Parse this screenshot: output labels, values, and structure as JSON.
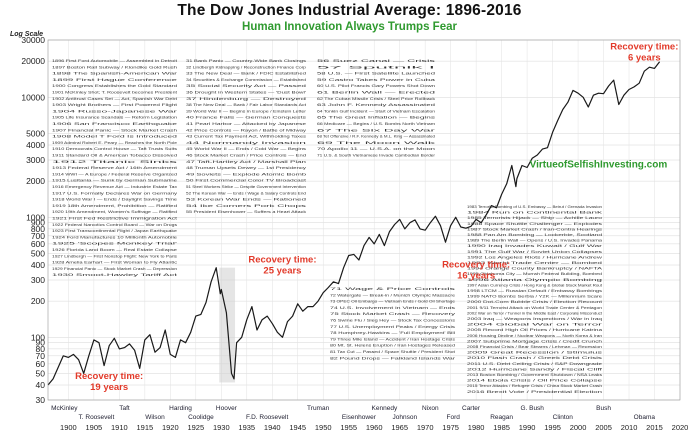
{
  "chart_data": {
    "type": "line",
    "title": "The Dow Jones Industrial Average: 1896-2016",
    "subtitle": "Human Innovation Always Trumps Fear",
    "ylabel": "Log Scale",
    "yscale": "log",
    "ylim": [
      30,
      30000
    ],
    "xlim": [
      1896,
      2020
    ],
    "y_ticks": [
      {
        "value": 30,
        "label": "30"
      },
      {
        "value": 40,
        "label": "40"
      },
      {
        "value": 50,
        "label": "50"
      },
      {
        "value": 60,
        "label": "60"
      },
      {
        "value": 70,
        "label": "70"
      },
      {
        "value": 80,
        "label": "80"
      },
      {
        "value": 90,
        "label": "90"
      },
      {
        "value": 100,
        "label": "100"
      },
      {
        "value": 200,
        "label": "200"
      },
      {
        "value": 300,
        "label": "300"
      },
      {
        "value": 400,
        "label": "400"
      },
      {
        "value": 500,
        "label": "500"
      },
      {
        "value": 600,
        "label": "600"
      },
      {
        "value": 700,
        "label": "700"
      },
      {
        "value": 800,
        "label": "800"
      },
      {
        "value": 900,
        "label": "900"
      },
      {
        "value": 1000,
        "label": "1000"
      },
      {
        "value": 2000,
        "label": "2000"
      },
      {
        "value": 3000,
        "label": "3000"
      },
      {
        "value": 4000,
        "label": "4000"
      },
      {
        "value": 5000,
        "label": "5000"
      },
      {
        "value": 10000,
        "label": "10000"
      },
      {
        "value": 20000,
        "label": "20000"
      },
      {
        "value": 30000,
        "label": "30000"
      }
    ],
    "x_ticks": [
      1900,
      1905,
      1910,
      1915,
      1920,
      1925,
      1930,
      1935,
      1940,
      1945,
      1950,
      1955,
      1960,
      1965,
      1970,
      1975,
      1980,
      1985,
      1990,
      1995,
      2000,
      2005,
      2010,
      2015,
      2020
    ],
    "series": [
      {
        "x": [
          1896,
          1897,
          1899,
          1900,
          1901,
          1902,
          1903,
          1904,
          1905,
          1906,
          1907,
          1908,
          1909,
          1910,
          1911,
          1912,
          1913,
          1914,
          1915,
          1916,
          1917,
          1918,
          1919,
          1920,
          1921,
          1922,
          1923,
          1924,
          1925,
          1926,
          1927,
          1928,
          1929,
          1929.8,
          1930,
          1931,
          1932,
          1932.5,
          1933,
          1934,
          1935,
          1936,
          1937,
          1938,
          1939,
          1940,
          1941,
          1942,
          1943,
          1944,
          1945,
          1946,
          1947,
          1948,
          1949,
          1950,
          1951,
          1952,
          1953,
          1954,
          1955,
          1956,
          1957,
          1958,
          1959,
          1960,
          1961,
          1962,
          1963,
          1964,
          1965,
          1966,
          1967,
          1968,
          1969,
          1970,
          1971,
          1972,
          1973,
          1974,
          1975,
          1976,
          1977,
          1978,
          1979,
          1980,
          1981,
          1982,
          1983,
          1984,
          1985,
          1986,
          1987,
          1987.8,
          1988,
          1989,
          1990,
          1991,
          1992,
          1993,
          1994,
          1995,
          1996,
          1997,
          1998,
          1999,
          2000,
          2001,
          2002,
          2003,
          2004,
          2005,
          2006,
          2007,
          2008,
          2009,
          2010,
          2011,
          2012,
          2013,
          2014,
          2015,
          2016
        ],
        "y": [
          40,
          45,
          70,
          68,
          72,
          65,
          50,
          70,
          95,
          90,
          58,
          85,
          98,
          80,
          82,
          88,
          78,
          55,
          95,
          105,
          75,
          82,
          115,
          72,
          68,
          95,
          90,
          110,
          150,
          155,
          195,
          290,
          380,
          230,
          250,
          160,
          50,
          45,
          90,
          100,
          140,
          180,
          115,
          140,
          150,
          130,
          110,
          100,
          135,
          150,
          190,
          165,
          180,
          180,
          200,
          235,
          260,
          290,
          280,
          380,
          480,
          490,
          440,
          580,
          680,
          600,
          720,
          580,
          760,
          870,
          960,
          800,
          900,
          950,
          800,
          780,
          900,
          1020,
          850,
          620,
          850,
          1000,
          830,
          810,
          840,
          960,
          900,
          1050,
          1250,
          1200,
          1550,
          1900,
          2700,
          1800,
          2100,
          2700,
          2600,
          3100,
          3300,
          3700,
          3800,
          5100,
          6400,
          7900,
          9100,
          11400,
          10800,
          10000,
          8300,
          10400,
          10800,
          10700,
          12400,
          13900,
          8700,
          10400,
          11600,
          12200,
          13100,
          16500,
          17800,
          17400,
          19800
        ]
      }
    ],
    "annotations": [
      {
        "label": "Recovery time:\n19 years",
        "x": 1908,
        "y": 45
      },
      {
        "label": "Recovery time:\n25 years",
        "x": 1942,
        "y": 420
      },
      {
        "label": "Recovery time:\n16 years",
        "x": 1980,
        "y": 380
      },
      {
        "label": "Recovery time:\n6 years",
        "x": 2013,
        "y": 25000
      }
    ],
    "watermark": "VirtueofSelfishInvesting.com",
    "presidents": [
      {
        "name": "McKinley",
        "x": 1899.2
      },
      {
        "name": "T. Roosevelt",
        "x": 1905.5
      },
      {
        "name": "Taft",
        "x": 1911
      },
      {
        "name": "Wilson",
        "x": 1917
      },
      {
        "name": "Harding",
        "x": 1922
      },
      {
        "name": "Coolidge",
        "x": 1926
      },
      {
        "name": "Hoover",
        "x": 1931
      },
      {
        "name": "F.D. Roosevelt",
        "x": 1939
      },
      {
        "name": "Truman",
        "x": 1949
      },
      {
        "name": "Eisenhower",
        "x": 1957
      },
      {
        "name": "Kennedy",
        "x": 1962
      },
      {
        "name": "Johnson",
        "x": 1966
      },
      {
        "name": "Nixon",
        "x": 1971
      },
      {
        "name": "Ford",
        "x": 1975.5
      },
      {
        "name": "Carter",
        "x": 1979
      },
      {
        "name": "Reagan",
        "x": 1985
      },
      {
        "name": "G. Bush",
        "x": 1991
      },
      {
        "name": "Clinton",
        "x": 1997
      },
      {
        "name": "Bush",
        "x": 2005
      },
      {
        "name": "Obama",
        "x": 2013
      }
    ]
  },
  "events_col1": [
    "1896  First Ford Automobile — Assembled in Detroit",
    "1897  Boston Rail Subway / Klondike Gold Rush",
    "1898  The Spanish-American War",
    "1899  First Hague Conference",
    "1900  Congress Establishes the Gold Standard",
    "1901  McKinley Shot; T. Roosevelt becomes President",
    "1902  Antitrust Cases Set — Act, Spanish War Debt",
    "1903  Wright Brothers — First Powered Flight",
    "1904  Russo-Japanese War",
    "1905  Life Insurance Scandals — Reform Legislation",
    "1906  San Francisco Earthquake",
    "1907  Financial Panic — Stock Market Crash",
    "1908  Model T Ford Is Introduced",
    "1909  Admiral Robert E. Peary — Reaches the North Pole",
    "1910  Democrats Control House — Taft Trusts Suits",
    "1911  Standard Oil & American Tobacco Dissolved",
    "1912  Titanic Sinks",
    "1913  Federal Reserve Act / 16th Amendment",
    "1914  WWI — A Europe / Federal Reserve Organized",
    "1915  Lusitania — Sunk by German Submarine",
    "1916  Emergency Revenue Act — Industrie Estate Tax",
    "1917  U.S. Formally Declares War on Germany",
    "1918  World War I — Ends / Daylight Savings Time",
    "1919  18th Amendment, Prohibition — Ratified",
    "1920  19th Amendment, Women's Suffrage — Ratified",
    "1921  First Fed Restrictive Immigration Act",
    "1922  Federal Narcotics Control Board — War on Drugs",
    "1923  First Transcontinental Flight / Japan Earthquake",
    "1924  Ford Manufactures 10 Millionth Automobile",
    "1925  'Scopes Monkey Trial'",
    "1926  Florida Land Boom — Real Estate Collapse",
    "1927  Lindbergh — First Nonstop Flight: New York to Paris",
    "1928  Amelia Earhart — First Woman to Fly Atlantic",
    "1929  Financial Panic — Stock Market Crash — Depression",
    "1930  Smoot-Hawley Tariff Act"
  ],
  "events_col2": [
    "31  Bank Panic — Country-Wide Bank Closings",
    "32  Lindbergh Kidnapping / Reconstruction Finance Corp",
    "33  The New Deal — Bank / FDIC Established",
    "34  Securities & Exchange Commission — Established",
    "35  Social Security Act — Passed",
    "36  Drought in Western States — 'Dust Bowl'",
    "37  Hindenburg — Destroyed",
    "38  The New Deal — Bank / Fair Labor Standards Act",
    "39  World War II — Begins in Europe / Einstein Letter",
    "40  France Falls — German Conquests",
    "41  Pearl Harbor — Attacked by Japanese",
    "42  Price Controls — Rayon / Battle of Midway",
    "43  Current Tax Payment Act, Withholding Taxes",
    "44  Normandy Invasion",
    "45  World War II — Ends / Cold War — Begins",
    "46  Stock Market Crash / Price Controls — End",
    "47  Taft-Hartley Act / Marshall Plan",
    "48  Truman Upsets Dewey — 1st Presidency",
    "49  Soviets — Explode Atomic Bomb",
    "50  First Commercial Color TV Broadcast",
    "51  Steel Workers Strike — Despite Government Intervention",
    "52  The Korean War — Ends / Wage & Salary Controls End",
    "53  Korean War Ends — Rationed",
    "54  Ike Corners Pork Chops",
    "55  President Eisenhower — Suffers a Heart Attack"
  ],
  "events_col3": [
    "56  Suez Canal — Crisis",
    "57  Sputnik I",
    "58  U.S. — First Satellite Launched",
    "59  Castro Takes Power in Cuba",
    "60  U.S. Pilot Francis Gary Powers Shot Down",
    "61  Berlin Wall — Erected",
    "62  The Cuban Missile Crisis / Steel Price Rollback",
    "63  John F. Kennedy Assassinated",
    "64  Tonkin Gulf Incident — Start of Vietnam Escalation",
    "65  The Great Inflation — Begins",
    "66  Medicare — Begins / U.S. Bombs North Vietnam",
    "67  The Six Day War",
    "68  Tet Offensive / R.F. Kennedy & M.L. King — Assassinated",
    "69  The Moon Walk",
    "70  Apollo 11 — U.S.A. on the Moon",
    "71  U.S. & South Vietnamese Invade Cambodian Border"
  ],
  "events_col4": [
    "71  Wage & Price Controls",
    "72  Watergate — Break-in / Munich Olympic Massacre",
    "73  OPEC Oil Embargo — Vietnam Ends / Gold Oil Shortage",
    "74  U.S. Involvement in Vietnam — Ends",
    "75  Stock Market Crash — Recovery",
    "76  Swine Flu / Sieg Hey — Stock Tax Concessions",
    "77  U.S. Unemployment Peaks / Energy Crisis",
    "78  Humphrey-Hawkins — 'Full Employment' Bill",
    "79  Three Mile Island — Accident / Iran Hostage Crisis",
    "80  Mt. St. Helens Eruption / Iran Hostages Released",
    "81  Tax Cut — Passed / Space Shuttle / President Shot",
    "82  Pound Drops — Falkland Islands War"
  ],
  "events_col5": [
    "1983  Terrorist Bombing of U.S. Embassy — Beirut / Grenada Invasion",
    "1984  Run on Continental Bank",
    "1985  Terrorists Hijack — Ship — Achille Lauro",
    "1986  Space Shuttle Challenger — Explodes",
    "1987  Stock Market Crash / Iran-Contra Hearings",
    "1988  Pan Am Bombing — Lockerbie, Scotland",
    "1989  The Berlin Wall — Opens / U.S. Invades Panama",
    "1990  Iraq Invades Kuwait / Gulf War",
    "1991  The Gulf War / Soviet Union Collapses",
    "1992  Los Angeles Riots / Hurricane Andrew",
    "1993  World Trade Center — Bombed",
    "1994  Orange County Bankruptcy / NAFTA",
    "1995  Oklahoma City — Murrah Federal Building, Bombed",
    "1996  Atlanta Olympic Bombing",
    "1997  Asian Currency Crisis / Hong Kong & Global Stock Market Rout",
    "1998  LTCM — Russian Default / Embassy Bombings",
    "1999  NATO Bombs Serbia / Y2K — Millennium Scare",
    "2000  Dot-Com Bubble Crisis / Election Recount",
    "2001  9/11 Terrorist Attack on World Trade Center & Pentagon",
    "2002  War on Terror / Tunnel in the Middle East / Corporate Misconduct",
    "2003  Iraq — Weapons Inspections / War in Iraq",
    "2004  Global War on Terror",
    "2005  Record High Oil Prices / Hurricane Katrina",
    "2006  Housing Decline / Nuclear Weapons — North Korea & Iran",
    "2007  Subprime Mortgage Crisis / Credit Crunch",
    "2008  Financial Crisis / Bear Stearns / Lehman — Recession",
    "2009  Great Recession / Stimulus",
    "2010  Flash Crash / Greek Debt Crisis",
    "2011  U.S. Debt Ceiling Crisis / S&P Downgrade",
    "2012  Hurricane Sandy / Fiscal Cliff",
    "2013  Boston Bombing / Government Shutdown / NSA Leaks",
    "2014  Ebola Crisis / Oil Price Collapse",
    "2015  Terror Attacks / Refugee Crisis / China Stock Market Crash",
    "2016  Brexit Vote / Presidential Election"
  ]
}
